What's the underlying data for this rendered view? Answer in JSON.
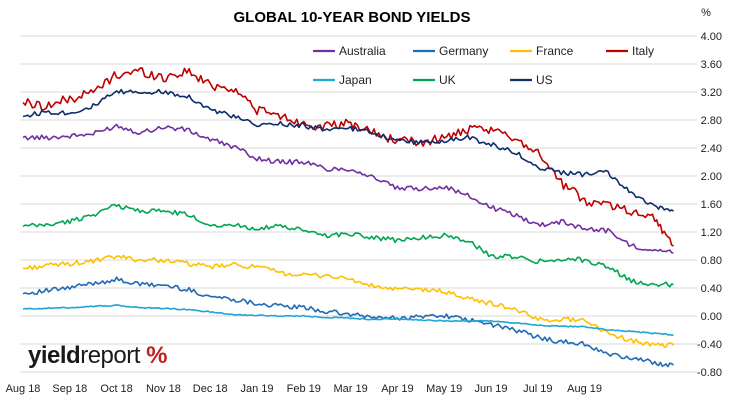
{
  "logo": {
    "part1": "yield",
    "part2": "report",
    "part3": "%"
  },
  "chart_data": {
    "type": "line",
    "title": "GLOBAL 10-YEAR BOND YIELDS",
    "ylabel": "%",
    "xlabel": "",
    "ylim": [
      -0.8,
      4.0
    ],
    "y_ticks": [
      "4.00",
      "3.60",
      "3.20",
      "2.80",
      "2.40",
      "2.00",
      "1.60",
      "1.20",
      "0.80",
      "0.40",
      "0.00",
      "-0.40",
      "-0.80"
    ],
    "x_ticks": [
      "Aug 18",
      "Sep 18",
      "Oct 18",
      "Nov 18",
      "Dec 18",
      "Jan 19",
      "Feb 19",
      "Mar 19",
      "Apr 19",
      "May 19",
      "Jun 19",
      "Jul 19",
      "Aug 19"
    ],
    "grid": true,
    "legend": "top-right",
    "x_positions": [
      0,
      0.5,
      1,
      1.5,
      2,
      2.5,
      3,
      3.5,
      4,
      4.5,
      5,
      5.5,
      6,
      6.5,
      7,
      7.5,
      8,
      8.5,
      9,
      9.5,
      10,
      10.5,
      11,
      11.5,
      12,
      12.5,
      13,
      13.5,
      13.9
    ],
    "series": [
      {
        "name": "Australia",
        "color": "#7030a0",
        "values": [
          2.55,
          2.55,
          2.57,
          2.6,
          2.72,
          2.62,
          2.7,
          2.66,
          2.52,
          2.42,
          2.25,
          2.2,
          2.2,
          2.1,
          2.1,
          1.98,
          1.82,
          1.82,
          1.85,
          1.72,
          1.55,
          1.45,
          1.3,
          1.35,
          1.25,
          1.22,
          1.0,
          0.95,
          0.9
        ]
      },
      {
        "name": "Germany",
        "color": "#1f6bb5",
        "values": [
          0.32,
          0.36,
          0.4,
          0.47,
          0.52,
          0.45,
          0.44,
          0.38,
          0.28,
          0.24,
          0.18,
          0.14,
          0.12,
          0.06,
          0.02,
          -0.02,
          -0.03,
          -0.01,
          0.01,
          -0.06,
          -0.12,
          -0.2,
          -0.3,
          -0.37,
          -0.4,
          -0.55,
          -0.6,
          -0.67,
          -0.7
        ]
      },
      {
        "name": "France",
        "color": "#ffc000",
        "values": [
          0.68,
          0.72,
          0.75,
          0.78,
          0.85,
          0.8,
          0.8,
          0.75,
          0.7,
          0.73,
          0.7,
          0.62,
          0.58,
          0.58,
          0.52,
          0.42,
          0.38,
          0.38,
          0.35,
          0.25,
          0.18,
          0.1,
          -0.05,
          -0.05,
          -0.05,
          -0.25,
          -0.35,
          -0.42,
          -0.42
        ]
      },
      {
        "name": "Italy",
        "color": "#c00000",
        "values": [
          3.05,
          3.0,
          3.1,
          3.2,
          3.45,
          3.5,
          3.4,
          3.5,
          3.3,
          3.25,
          2.95,
          2.85,
          2.75,
          2.7,
          2.75,
          2.62,
          2.5,
          2.48,
          2.55,
          2.65,
          2.65,
          2.55,
          2.35,
          1.9,
          1.65,
          1.6,
          1.5,
          1.4,
          1.0
        ]
      },
      {
        "name": "Japan",
        "color": "#1fa6d6",
        "values": [
          0.1,
          0.11,
          0.12,
          0.14,
          0.15,
          0.12,
          0.11,
          0.09,
          0.06,
          0.02,
          0.01,
          0.0,
          0.0,
          -0.02,
          -0.03,
          -0.05,
          -0.04,
          -0.06,
          -0.07,
          -0.07,
          -0.07,
          -0.1,
          -0.13,
          -0.15,
          -0.15,
          -0.2,
          -0.22,
          -0.25,
          -0.27
        ]
      },
      {
        "name": "UK",
        "color": "#00a650",
        "values": [
          1.28,
          1.3,
          1.35,
          1.45,
          1.58,
          1.5,
          1.5,
          1.45,
          1.3,
          1.3,
          1.25,
          1.28,
          1.22,
          1.15,
          1.18,
          1.12,
          1.08,
          1.12,
          1.15,
          1.08,
          0.85,
          0.85,
          0.78,
          0.82,
          0.8,
          0.7,
          0.5,
          0.45,
          0.45
        ]
      },
      {
        "name": "US",
        "color": "#0d2d6c",
        "values": [
          2.85,
          2.92,
          2.9,
          3.0,
          3.2,
          3.2,
          3.2,
          3.15,
          2.95,
          2.85,
          2.72,
          2.75,
          2.72,
          2.65,
          2.68,
          2.62,
          2.5,
          2.48,
          2.5,
          2.55,
          2.45,
          2.35,
          2.12,
          2.05,
          2.02,
          2.05,
          1.75,
          1.55,
          1.5
        ]
      }
    ]
  }
}
